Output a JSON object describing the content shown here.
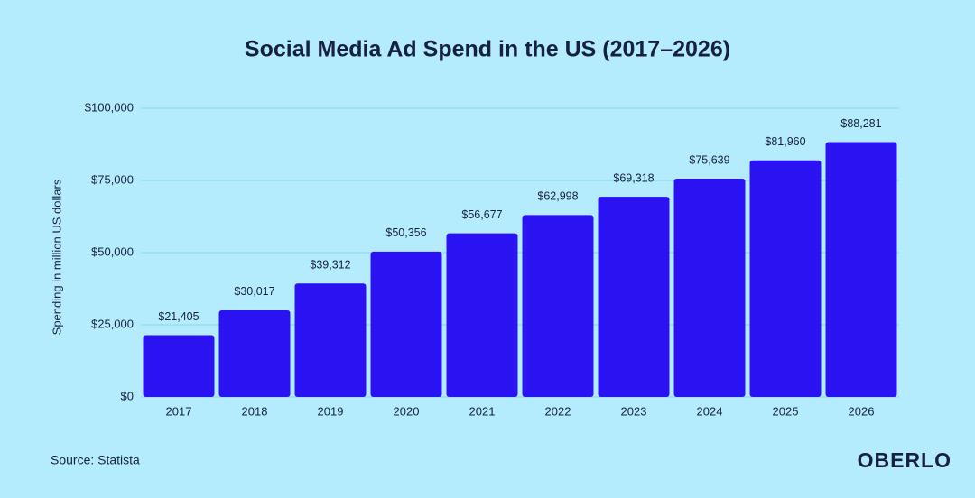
{
  "chart_data": {
    "type": "bar",
    "title": "Social Media Ad Spend in the US (2017–2026)",
    "y_label": "Spending in million US dollars",
    "categories": [
      "2017",
      "2018",
      "2019",
      "2020",
      "2021",
      "2022",
      "2023",
      "2024",
      "2025",
      "2026"
    ],
    "values": [
      21405,
      30017,
      39312,
      50356,
      56677,
      62998,
      69318,
      75639,
      81960,
      88281
    ],
    "value_labels": [
      "$21,405",
      "$30,017",
      "$39,312",
      "$50,356",
      "$56,677",
      "$62,998",
      "$69,318",
      "$75,639",
      "$81,960",
      "$88,281"
    ],
    "color": "#2b12f2",
    "ylim": [
      0,
      100000
    ],
    "yticks": [
      {
        "value": 0,
        "label": "$0"
      },
      {
        "value": 25000,
        "label": "$25,000"
      },
      {
        "value": 50000,
        "label": "$50,000"
      },
      {
        "value": 75000,
        "label": "$75,000"
      },
      {
        "value": 100000,
        "label": "$100,000"
      }
    ],
    "grid": true,
    "source": "Source: Statista",
    "brand": "OBERLO"
  }
}
